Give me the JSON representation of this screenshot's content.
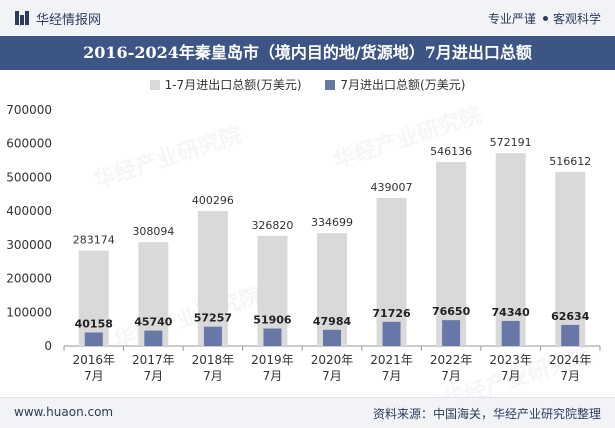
{
  "header": {
    "brand_name": "华经情报网",
    "tagline_left": "专业严谨",
    "tagline_right": "客观科学"
  },
  "title": "2016-2024年秦皇岛市（境内目的地/货源地）7月进出口总额",
  "watermark": "华经产业研究院",
  "footer": {
    "site_url": "www.huaon.com",
    "source_note": "资料来源：中国海关，华经产业研究院整理"
  },
  "colors": {
    "accent_bar": "#3d5585",
    "series_ytd": "#d9d9d9",
    "series_july": "#6777a8"
  },
  "chart_data": {
    "type": "bar",
    "title": "2016-2024年秦皇岛市（境内目的地/货源地）7月进出口总额",
    "categories": [
      [
        "2016年",
        "7月"
      ],
      [
        "2017年",
        "7月"
      ],
      [
        "2018年",
        "7月"
      ],
      [
        "2019年",
        "7月"
      ],
      [
        "2020年",
        "7月"
      ],
      [
        "2021年",
        "7月"
      ],
      [
        "2022年",
        "7月"
      ],
      [
        "2023年",
        "7月"
      ],
      [
        "2024年",
        "7月"
      ]
    ],
    "series": [
      {
        "name": "1-7月进出口总额(万美元)",
        "color": "#d9d9d9",
        "values": [
          283174,
          308094,
          400296,
          326820,
          334699,
          439007,
          546136,
          572191,
          516612
        ]
      },
      {
        "name": "7月进出口总额(万美元)",
        "color": "#6777a8",
        "values": [
          40158,
          45740,
          57257,
          51906,
          47984,
          71726,
          76650,
          74340,
          62634
        ]
      }
    ],
    "ylim": [
      0,
      700000
    ],
    "yticks": [
      0,
      100000,
      200000,
      300000,
      400000,
      500000,
      600000,
      700000
    ],
    "grid": false,
    "legend_position": "top-center"
  }
}
